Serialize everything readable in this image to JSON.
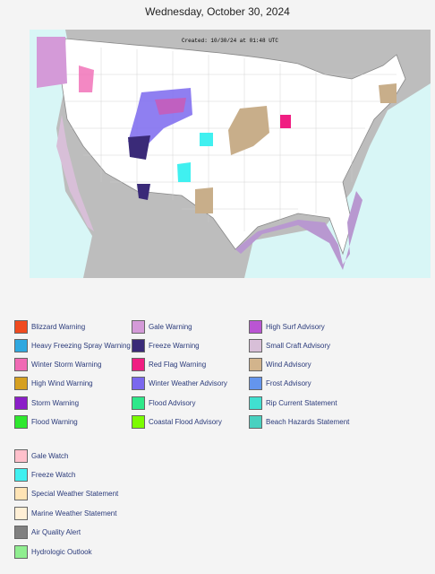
{
  "header": {
    "title": "Wednesday, October 30, 2024"
  },
  "map": {
    "created": "Created: 10/30/24 at 01:48 UTC"
  },
  "legend": {
    "warnings": [
      {
        "label": "Blizzard Warning",
        "color": "#f04a1e"
      },
      {
        "label": "Heavy Freezing Spray Warning",
        "color": "#2fa8e0"
      },
      {
        "label": "Winter Storm Warning",
        "color": "#f06ab4"
      },
      {
        "label": "High Wind Warning",
        "color": "#d6a021"
      },
      {
        "label": "Storm Warning",
        "color": "#8b1ec8"
      },
      {
        "label": "Flood Warning",
        "color": "#2ee82e"
      },
      {
        "label": "Gale Warning",
        "color": "#d49ad8"
      },
      {
        "label": "Freeze Warning",
        "color": "#3a2a78"
      },
      {
        "label": "Red Flag Warning",
        "color": "#f01e82"
      },
      {
        "label": "Winter Weather Advisory",
        "color": "#7b68ee"
      },
      {
        "label": "Flood Advisory",
        "color": "#2ee88a"
      },
      {
        "label": "Coastal Flood Advisory",
        "color": "#7cfc00"
      },
      {
        "label": "High Surf Advisory",
        "color": "#ba55d3"
      },
      {
        "label": "Small Craft Advisory",
        "color": "#d8bfd8"
      },
      {
        "label": "Wind Advisory",
        "color": "#d2b48c"
      },
      {
        "label": "Frost Advisory",
        "color": "#6495ed"
      },
      {
        "label": "Rip Current Statement",
        "color": "#40e0d0"
      },
      {
        "label": "Beach Hazards Statement",
        "color": "#48d1c0"
      }
    ],
    "watches": [
      {
        "label": "Gale Watch",
        "color": "#ffc0cb"
      },
      {
        "label": "Freeze Watch",
        "color": "#40f0f0"
      },
      {
        "label": "Special Weather Statement",
        "color": "#ffe4b5"
      },
      {
        "label": "Marine Weather Statement",
        "color": "#ffefd5"
      },
      {
        "label": "Air Quality Alert",
        "color": "#808080"
      },
      {
        "label": "Hydrologic Outlook",
        "color": "#90ee90"
      }
    ]
  }
}
